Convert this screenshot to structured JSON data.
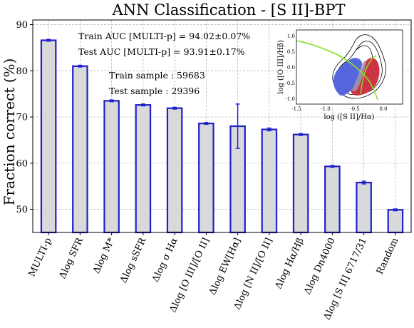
{
  "chart_data": {
    "type": "bar",
    "title": "ANN Classification - [S II]-BPT",
    "ylabel": "Fraction correct (%)",
    "xlabel": "",
    "ylim": [
      45,
      91
    ],
    "yticks": [
      50,
      60,
      70,
      80,
      90
    ],
    "grid": true,
    "categories": [
      "MULTI-p",
      "Δlog SFR",
      "Δlog M*",
      "Δlog sSFR",
      "Δlog σ Hα",
      "Δlog [O III]/[O II]",
      "Δlog EW[Hα]",
      "Δlog [N II]/[O II]",
      "Δlog Hα/Hβ",
      "Δlog Dn4000",
      "Δlog [S II] 6717/31",
      "Random"
    ],
    "values": [
      86.6,
      81.0,
      73.5,
      72.6,
      71.9,
      68.6,
      68.0,
      67.3,
      66.2,
      59.3,
      55.8,
      49.9
    ],
    "errors": [
      0.2,
      0.2,
      0.2,
      0.2,
      0.2,
      0.2,
      4.8,
      0.3,
      0.2,
      0.2,
      0.3,
      0.2
    ],
    "colors": {
      "bar_fill": "#d9d9d9",
      "bar_edge": "#1f1fcc",
      "grid": "#b0b0b0"
    },
    "annotations": [
      "Train AUC [MULTI-p] = 94.02±0.07%",
      "Test AUC [MULTI-p] = 93.91±0.17%",
      "Train sample : 59683",
      "Test sample : 29396"
    ],
    "inset": {
      "type": "contour-scatter",
      "xlabel": "log ([S II]/Hα)",
      "ylabel": "log ([O III]/Hβ)",
      "xlim": [
        -1.5,
        0.35
      ],
      "ylim": [
        -1.1,
        1.2
      ],
      "xticks": [
        "-1.5",
        "-1.0",
        "-0.5",
        "0.0"
      ],
      "yticks": [
        "1.0",
        "0.5",
        "0.0",
        "-0.5",
        "-1.0"
      ],
      "colors": {
        "star_forming": "#5566dd",
        "agn": "#cc3344",
        "demarcation": "#88e022",
        "contour": "#000000"
      }
    }
  }
}
